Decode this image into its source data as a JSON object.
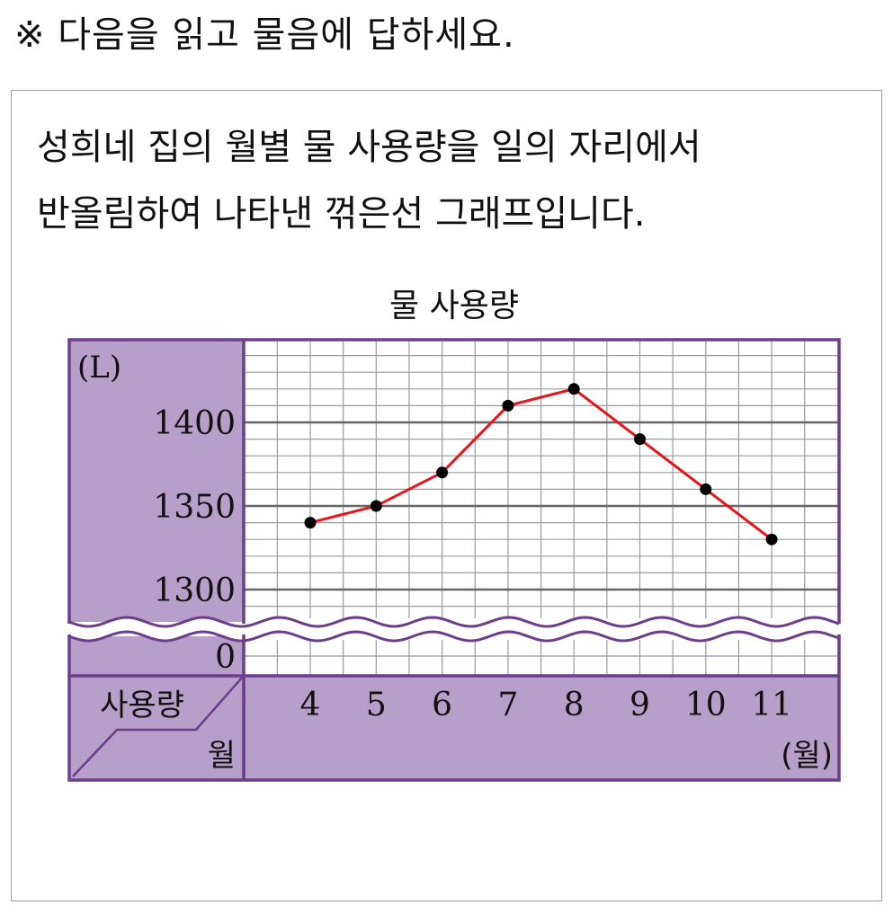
{
  "instruction": "※ 다음을 읽고 물음에 답하세요.",
  "question": {
    "line1": "성희네 집의 월별 물 사용량을 일의 자리에서",
    "line2": "반올림하여 나타낸 꺾은선 그래프입니다."
  },
  "chart_data": {
    "type": "line",
    "title": "물 사용량",
    "y_unit": "(L)",
    "x_unit": "(월)",
    "corner_top": "사용량",
    "corner_bottom": "월",
    "categories": [
      "4",
      "5",
      "6",
      "7",
      "8",
      "9",
      "10",
      "11"
    ],
    "values": [
      1340,
      1350,
      1370,
      1410,
      1420,
      1390,
      1360,
      1330
    ],
    "y_ticks": [
      "1400",
      "1350",
      "1300",
      "0"
    ],
    "ylim": [
      1290,
      1440
    ],
    "axis_break": true,
    "grid": true,
    "colors": {
      "line": "#e8141b",
      "point": "#000000",
      "frame": "#6b3d8b",
      "label_fill": "#b89fca",
      "grid_major": "#666666",
      "grid_minor": "#9a9a9a"
    }
  }
}
